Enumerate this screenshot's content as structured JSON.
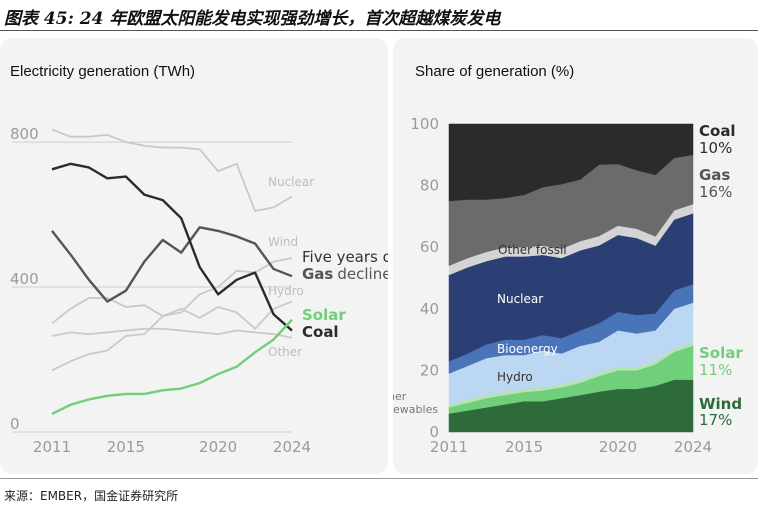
{
  "figure_title": "图表 45: 24 年欧盟太阳能发电实现强劲增长，首次超越煤炭发电",
  "source": "来源：EMBER，国金证券研究所",
  "colors": {
    "panel_bg": "#f3f3f3",
    "solar": "#6fcf7b",
    "coal": "#2b2b2b",
    "gas": "#555555",
    "other_lines": "#c9c9c9",
    "coal_area": "#2b2b2b",
    "gas_area": "#6b6b6b",
    "other_fossil_area": "#d4d4d4",
    "nuclear_area": "#2c3f75",
    "bioenergy_area": "#4a74b8",
    "hydro_area": "#bcd7f2",
    "other_renew_area": "#b6e3b0",
    "solar_area": "#6fcf7b",
    "wind_area": "#2e6b3a"
  },
  "chart_data": [
    {
      "type": "line",
      "title": "Electricity generation (TWh)",
      "xlabel": "",
      "ylabel": "",
      "x": [
        2011,
        2012,
        2013,
        2014,
        2015,
        2016,
        2017,
        2018,
        2019,
        2020,
        2021,
        2022,
        2023,
        2024
      ],
      "xticks": [
        2011,
        2015,
        2020,
        2024
      ],
      "yticks": [
        0,
        400,
        800
      ],
      "ylim": [
        0,
        850
      ],
      "grid": "horizontal",
      "series": [
        {
          "name": "Nuclear",
          "values": [
            835,
            815,
            815,
            820,
            800,
            790,
            785,
            785,
            780,
            720,
            740,
            610,
            620,
            650
          ],
          "highlight": false
        },
        {
          "name": "Wind",
          "values": [
            170,
            195,
            215,
            225,
            265,
            270,
            320,
            330,
            380,
            400,
            445,
            440,
            470,
            480
          ],
          "highlight": false
        },
        {
          "name": "Hydro",
          "values": [
            300,
            340,
            370,
            370,
            345,
            350,
            320,
            340,
            315,
            345,
            330,
            285,
            340,
            360
          ],
          "highlight": false
        },
        {
          "name": "Other",
          "values": [
            265,
            275,
            270,
            275,
            280,
            285,
            285,
            280,
            275,
            270,
            280,
            275,
            270,
            260
          ],
          "highlight": false
        },
        {
          "name": "Gas",
          "values": [
            555,
            490,
            420,
            360,
            390,
            470,
            530,
            495,
            565,
            555,
            540,
            520,
            450,
            430
          ],
          "highlight": true
        },
        {
          "name": "Coal",
          "values": [
            725,
            740,
            730,
            700,
            705,
            655,
            640,
            590,
            455,
            380,
            420,
            440,
            325,
            280
          ],
          "highlight": true
        },
        {
          "name": "Solar",
          "values": [
            50,
            75,
            90,
            100,
            105,
            105,
            115,
            120,
            135,
            160,
            180,
            220,
            255,
            310
          ],
          "highlight": true
        }
      ],
      "annotations": {
        "gas_decline_line1": "Five years of",
        "gas_decline_word": "Gas",
        "gas_decline_rest": "decline"
      }
    },
    {
      "type": "area",
      "title": "Share of generation (%)",
      "stacked": true,
      "x": [
        2011,
        2012,
        2013,
        2014,
        2015,
        2016,
        2017,
        2018,
        2019,
        2020,
        2021,
        2022,
        2023,
        2024
      ],
      "xticks": [
        2011,
        2015,
        2020,
        2024
      ],
      "yticks": [
        0,
        20,
        40,
        60,
        80,
        100
      ],
      "ylim": [
        0,
        100
      ],
      "series": [
        {
          "name": "Wind",
          "values": [
            6,
            7,
            8,
            9,
            10,
            10,
            11,
            12,
            13,
            14,
            14,
            15,
            17,
            17
          ]
        },
        {
          "name": "Solar",
          "values": [
            2,
            2.5,
            3,
            3,
            3,
            3.5,
            3.5,
            4,
            5,
            6,
            6,
            7,
            9,
            11
          ]
        },
        {
          "name": "Other renewables",
          "values": [
            1,
            1,
            1,
            1,
            1,
            1,
            1,
            1,
            1,
            1,
            1,
            1,
            1,
            1
          ]
        },
        {
          "name": "Hydro",
          "values": [
            10,
            11,
            12,
            12,
            11,
            12,
            10,
            11,
            10,
            12,
            11,
            10,
            13,
            13
          ]
        },
        {
          "name": "Bioenergy",
          "values": [
            4,
            4,
            4.5,
            5,
            5,
            5,
            5,
            5,
            6,
            6,
            6,
            5.5,
            6,
            6
          ]
        },
        {
          "name": "Nuclear",
          "values": [
            28,
            28,
            27,
            27,
            27,
            26,
            26,
            26,
            25,
            25,
            25,
            22,
            23,
            23
          ]
        },
        {
          "name": "Other fossil",
          "values": [
            3,
            3,
            3,
            3,
            3,
            3,
            3,
            3,
            3,
            3,
            3,
            3,
            3,
            3
          ]
        },
        {
          "name": "Gas",
          "values": [
            21,
            19,
            17,
            16,
            17,
            19,
            21,
            20,
            23,
            20,
            19,
            20,
            17,
            16
          ]
        },
        {
          "name": "Coal",
          "values": [
            25,
            24.5,
            24.5,
            24,
            23,
            20.5,
            19.5,
            18,
            13,
            13,
            15,
            16.5,
            11,
            10
          ]
        }
      ],
      "labels": {
        "coal": "Coal",
        "coal_pct": "10%",
        "gas": "Gas",
        "gas_pct": "16%",
        "solar": "Solar",
        "solar_pct": "11%",
        "wind": "Wind",
        "wind_pct": "17%",
        "other_fossil": "Other fossil",
        "nuclear": "Nuclear",
        "bioenergy": "Bioenergy",
        "hydro": "Hydro",
        "other_renew_line1": "Other",
        "other_renew_line2": "renewables"
      }
    }
  ]
}
